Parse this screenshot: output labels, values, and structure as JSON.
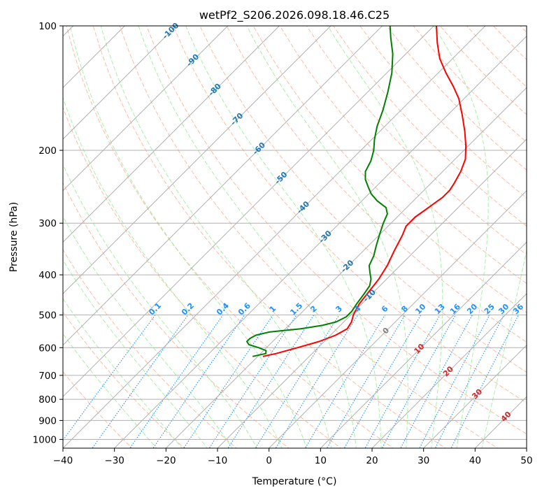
{
  "chart_data": {
    "type": "line",
    "title": "wetPf2_S206.2026.098.18.46.C25",
    "xlabel": "Temperature (°C)",
    "ylabel": "Pressure (hPa)",
    "xlim": [
      -40,
      50
    ],
    "ylim": [
      1050,
      100
    ],
    "x_ticks": [
      -40,
      -30,
      -20,
      -10,
      0,
      10,
      20,
      30,
      40,
      50
    ],
    "x_tick_labels": [
      "−40",
      "−30",
      "−20",
      "−10",
      "0",
      "10",
      "20",
      "30",
      "40",
      "50"
    ],
    "y_ticks": [
      100,
      200,
      300,
      400,
      500,
      600,
      700,
      800,
      900,
      1000
    ],
    "y_tick_labels": [
      "100",
      "200",
      "300",
      "400",
      "500",
      "600",
      "700",
      "800",
      "900",
      "1000"
    ],
    "skew_degrees": 45,
    "grid": true,
    "series": [
      {
        "name": "Temperature",
        "color": "#ff0000",
        "points": [
          {
            "p": 630,
            "t": -19
          },
          {
            "p": 620,
            "t": -17
          },
          {
            "p": 600,
            "t": -14
          },
          {
            "p": 580,
            "t": -11
          },
          {
            "p": 560,
            "t": -9
          },
          {
            "p": 540,
            "t": -8
          },
          {
            "p": 520,
            "t": -8.5
          },
          {
            "p": 500,
            "t": -9.5
          },
          {
            "p": 470,
            "t": -10.5
          },
          {
            "p": 440,
            "t": -11
          },
          {
            "p": 410,
            "t": -11.5
          },
          {
            "p": 380,
            "t": -12.5
          },
          {
            "p": 350,
            "t": -14
          },
          {
            "p": 320,
            "t": -15.5
          },
          {
            "p": 305,
            "t": -16.5
          },
          {
            "p": 290,
            "t": -16.5
          },
          {
            "p": 280,
            "t": -16
          },
          {
            "p": 270,
            "t": -15.5
          },
          {
            "p": 260,
            "t": -15
          },
          {
            "p": 250,
            "t": -15
          },
          {
            "p": 240,
            "t": -15.5
          },
          {
            "p": 225,
            "t": -16.5
          },
          {
            "p": 210,
            "t": -18
          },
          {
            "p": 195,
            "t": -20.5
          },
          {
            "p": 180,
            "t": -23.5
          },
          {
            "p": 165,
            "t": -27
          },
          {
            "p": 150,
            "t": -31
          },
          {
            "p": 140,
            "t": -34.5
          },
          {
            "p": 130,
            "t": -38.5
          },
          {
            "p": 120,
            "t": -42.5
          },
          {
            "p": 110,
            "t": -46
          },
          {
            "p": 100,
            "t": -49.5
          }
        ]
      },
      {
        "name": "Dewpoint",
        "color": "#008000",
        "points": [
          {
            "p": 630,
            "t": -21
          },
          {
            "p": 620,
            "t": -19
          },
          {
            "p": 610,
            "t": -19.5
          },
          {
            "p": 600,
            "t": -21.5
          },
          {
            "p": 590,
            "t": -24
          },
          {
            "p": 580,
            "t": -25
          },
          {
            "p": 570,
            "t": -25
          },
          {
            "p": 560,
            "t": -24.5
          },
          {
            "p": 550,
            "t": -22.5
          },
          {
            "p": 540,
            "t": -17
          },
          {
            "p": 530,
            "t": -13.5
          },
          {
            "p": 520,
            "t": -11.5
          },
          {
            "p": 505,
            "t": -10.5
          },
          {
            "p": 490,
            "t": -10.5
          },
          {
            "p": 470,
            "t": -11
          },
          {
            "p": 445,
            "t": -11.5
          },
          {
            "p": 425,
            "t": -12
          },
          {
            "p": 410,
            "t": -13
          },
          {
            "p": 395,
            "t": -14.5
          },
          {
            "p": 380,
            "t": -16
          },
          {
            "p": 360,
            "t": -17
          },
          {
            "p": 340,
            "t": -18.5
          },
          {
            "p": 320,
            "t": -20
          },
          {
            "p": 300,
            "t": -21.5
          },
          {
            "p": 285,
            "t": -22.5
          },
          {
            "p": 275,
            "t": -24
          },
          {
            "p": 265,
            "t": -27
          },
          {
            "p": 255,
            "t": -29.5
          },
          {
            "p": 245,
            "t": -31.5
          },
          {
            "p": 235,
            "t": -33.5
          },
          {
            "p": 225,
            "t": -35
          },
          {
            "p": 212,
            "t": -36
          },
          {
            "p": 200,
            "t": -37.5
          },
          {
            "p": 188,
            "t": -39.5
          },
          {
            "p": 175,
            "t": -41.5
          },
          {
            "p": 160,
            "t": -43.5
          },
          {
            "p": 145,
            "t": -46
          },
          {
            "p": 130,
            "t": -49
          },
          {
            "p": 117,
            "t": -52.5
          },
          {
            "p": 107,
            "t": -56
          },
          {
            "p": 100,
            "t": -58.5
          }
        ]
      }
    ],
    "isotherm_labels": {
      "color": "#1f77b4",
      "values": [
        -100,
        -90,
        -80,
        -70,
        -60,
        -50,
        -40,
        -30,
        -20,
        -10
      ]
    },
    "isotherm_warm_labels": {
      "color": "#d62728",
      "values": [
        10,
        20,
        30,
        40
      ]
    },
    "isotherm_zero_label": {
      "value": 0,
      "color": "#808080"
    },
    "mixing_ratio_labels": {
      "color": "#1e90ff",
      "values": [
        "0.1",
        "0.2",
        "0.4",
        "0.6",
        "1",
        "1.5",
        "2",
        "3",
        "4",
        "6",
        "8",
        "10",
        "13",
        "16",
        "20",
        "25",
        "30",
        "36"
      ]
    },
    "colors": {
      "grid": "#b0b0b0",
      "dry_adiabats": "#ffa07a",
      "moist_adiabats": "#90ee90",
      "mixing_ratio": "#1e90ff"
    }
  }
}
